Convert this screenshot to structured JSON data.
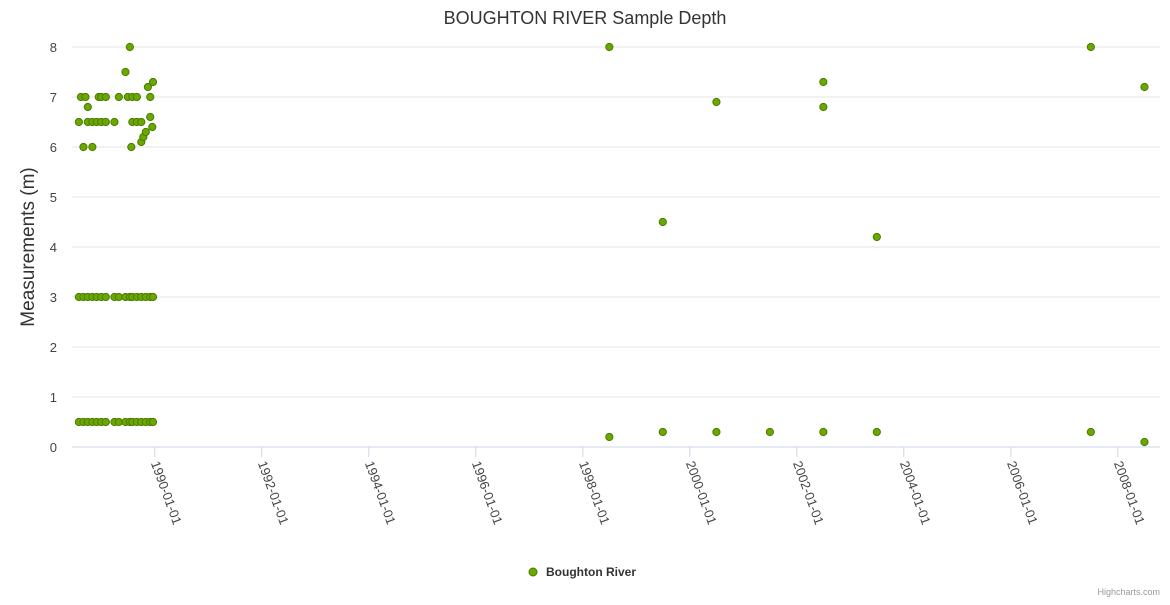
{
  "chart_data": {
    "type": "scatter",
    "title": "BOUGHTON RIVER Sample Depth",
    "ylabel": "Measurements (m)",
    "xlabel": "",
    "ylim": [
      0,
      8
    ],
    "yticks": [
      "0",
      "1",
      "2",
      "3",
      "4",
      "5",
      "6",
      "7",
      "8"
    ],
    "xlim": [
      "1988-06-15",
      "2008-10-15"
    ],
    "xticks": [
      "1990-01-01",
      "1992-01-01",
      "1994-01-01",
      "1996-01-01",
      "1998-01-01",
      "2000-01-01",
      "2002-01-01",
      "2004-01-01",
      "2006-01-01",
      "2008-01-01"
    ],
    "grid": true,
    "legend_position": "bottom-center",
    "marker_color": "#6aa800",
    "marker_stroke": "#4a7a00",
    "series": [
      {
        "name": "Boughton River",
        "points": [
          [
            "1988-08-01",
            0.5
          ],
          [
            "1988-08-01",
            3
          ],
          [
            "1988-08-01",
            6.5
          ],
          [
            "1988-08-15",
            7
          ],
          [
            "1988-09-01",
            0.5
          ],
          [
            "1988-09-01",
            3
          ],
          [
            "1988-09-01",
            6
          ],
          [
            "1988-09-15",
            7
          ],
          [
            "1988-10-01",
            0.5
          ],
          [
            "1988-10-01",
            3
          ],
          [
            "1988-10-01",
            6.5
          ],
          [
            "1988-10-01",
            6.8
          ],
          [
            "1988-11-01",
            0.5
          ],
          [
            "1988-11-01",
            3
          ],
          [
            "1988-11-01",
            6.5
          ],
          [
            "1988-11-01",
            6
          ],
          [
            "1988-12-01",
            0.5
          ],
          [
            "1988-12-01",
            3
          ],
          [
            "1988-12-01",
            6.5
          ],
          [
            "1988-12-15",
            7
          ],
          [
            "1989-01-01",
            0.5
          ],
          [
            "1989-01-01",
            3
          ],
          [
            "1989-01-01",
            6.5
          ],
          [
            "1989-01-01",
            7
          ],
          [
            "1989-02-01",
            0.5
          ],
          [
            "1989-02-01",
            3
          ],
          [
            "1989-02-01",
            6.5
          ],
          [
            "1989-02-01",
            7
          ],
          [
            "1989-04-01",
            0.5
          ],
          [
            "1989-04-01",
            3
          ],
          [
            "1989-04-01",
            6.5
          ],
          [
            "1989-05-01",
            0.5
          ],
          [
            "1989-05-01",
            3
          ],
          [
            "1989-05-01",
            7
          ],
          [
            "1989-06-15",
            0.5
          ],
          [
            "1989-06-15",
            3
          ],
          [
            "1989-06-15",
            7.5
          ],
          [
            "1989-07-01",
            7
          ],
          [
            "1989-07-15",
            0.5
          ],
          [
            "1989-07-15",
            3
          ],
          [
            "1989-07-15",
            8
          ],
          [
            "1989-07-25",
            6
          ],
          [
            "1989-08-01",
            0.5
          ],
          [
            "1989-08-01",
            3
          ],
          [
            "1989-08-01",
            6.5
          ],
          [
            "1989-08-01",
            7
          ],
          [
            "1989-09-01",
            0.5
          ],
          [
            "1989-09-01",
            3
          ],
          [
            "1989-09-01",
            6.5
          ],
          [
            "1989-09-01",
            7
          ],
          [
            "1989-10-01",
            0.5
          ],
          [
            "1989-10-01",
            3
          ],
          [
            "1989-10-01",
            6.5
          ],
          [
            "1989-10-01",
            6.1
          ],
          [
            "1989-10-15",
            6.2
          ],
          [
            "1989-11-01",
            0.5
          ],
          [
            "1989-11-01",
            3
          ],
          [
            "1989-11-01",
            6.3
          ],
          [
            "1989-11-15",
            7.2
          ],
          [
            "1989-12-01",
            0.5
          ],
          [
            "1989-12-01",
            3
          ],
          [
            "1989-12-01",
            7
          ],
          [
            "1989-12-01",
            6.6
          ],
          [
            "1989-12-20",
            0.5
          ],
          [
            "1989-12-20",
            3
          ],
          [
            "1989-12-20",
            7.3
          ],
          [
            "1989-12-15",
            6.4
          ],
          [
            "1998-07-01",
            8
          ],
          [
            "1998-07-01",
            0.2
          ],
          [
            "1999-07-01",
            4.5
          ],
          [
            "1999-07-01",
            0.3
          ],
          [
            "2000-07-01",
            6.9
          ],
          [
            "2000-07-01",
            0.3
          ],
          [
            "2001-07-01",
            0.3
          ],
          [
            "2002-07-01",
            7.3
          ],
          [
            "2002-07-01",
            6.8
          ],
          [
            "2002-07-01",
            0.3
          ],
          [
            "2003-07-01",
            4.2
          ],
          [
            "2003-07-01",
            0.3
          ],
          [
            "2007-07-01",
            8
          ],
          [
            "2007-07-01",
            0.3
          ],
          [
            "2008-07-01",
            7.2
          ],
          [
            "2008-07-01",
            0.1
          ]
        ]
      }
    ]
  },
  "legend": {
    "label": "Boughton River"
  },
  "credits": {
    "text": "Highcharts.com"
  }
}
